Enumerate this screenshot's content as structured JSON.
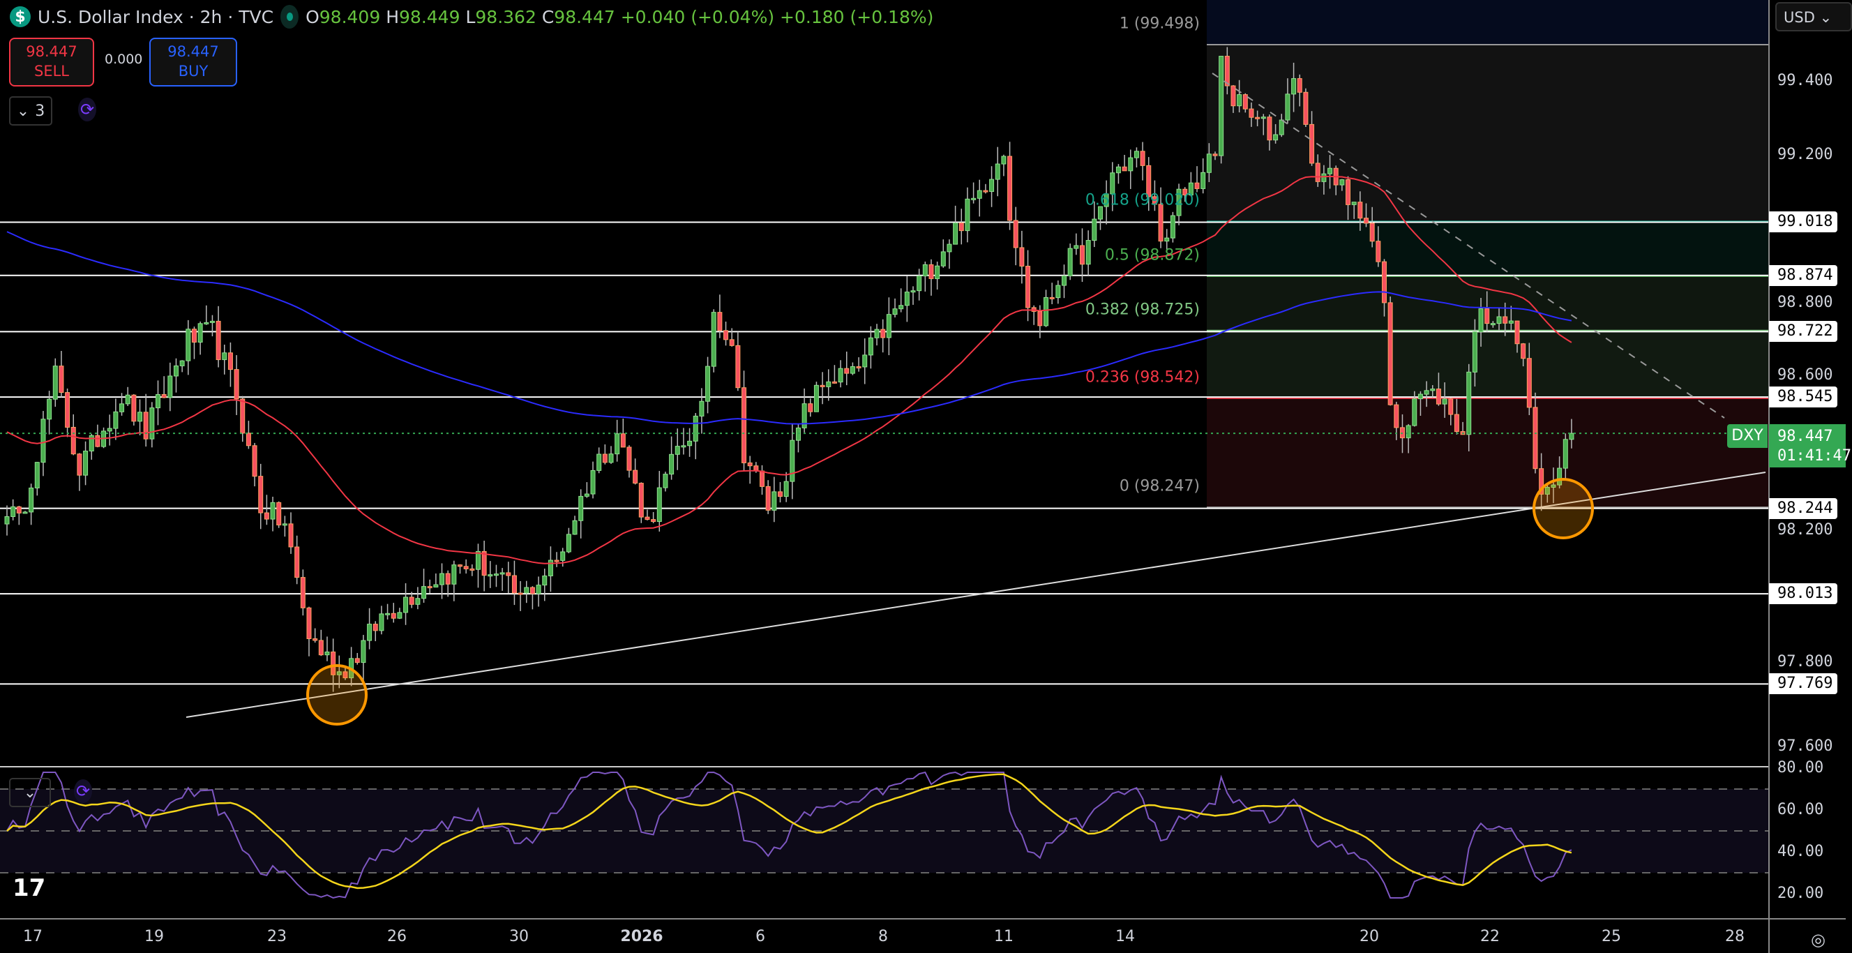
{
  "header": {
    "symbol_icon": "$",
    "title": "U.S. Dollar Index · 2h · TVC",
    "open_label": "O",
    "open": "98.409",
    "high_label": "H",
    "high": "98.449",
    "low_label": "L",
    "low": "98.362",
    "close_label": "C",
    "close": "98.447",
    "change": "+0.040 (+0.04%)",
    "change2": "+0.180 (+0.18%)"
  },
  "trade": {
    "sell_price": "98.447",
    "sell_label": "SELL",
    "spread": "0.000",
    "buy_price": "98.447",
    "buy_label": "BUY"
  },
  "legend": {
    "collapse_count": "3",
    "collapse_icon": "chevron-down-icon",
    "sync_icon": "sync-icon"
  },
  "price_axis": {
    "currency": "USD",
    "ticks": [
      "99.400",
      "99.200",
      "98.800",
      "98.600",
      "98.200",
      "97.800",
      "97.600"
    ],
    "tick_values": [
      99.4,
      99.2,
      98.8,
      98.6,
      98.2,
      97.8,
      97.6
    ],
    "levels": [
      "99.018",
      "98.874",
      "98.722",
      "98.545",
      "98.244",
      "98.013",
      "97.769"
    ],
    "current_price": "98.447",
    "countdown": "01:41:47",
    "symbol_tag": "DXY"
  },
  "fib": [
    {
      "label": "1 (99.498)",
      "value": 99.498,
      "color": "#9a9a9a"
    },
    {
      "label": "0.618 (99.020)",
      "value": 99.02,
      "color": "#15a38a"
    },
    {
      "label": "0.5 (98.872)",
      "value": 98.872,
      "color": "#4caf50"
    },
    {
      "label": "0.382 (98.725)",
      "value": 98.725,
      "color": "#81c784"
    },
    {
      "label": "0.236 (98.542)",
      "value": 98.542,
      "color": "#f23645"
    },
    {
      "label": "0 (98.247)",
      "value": 98.247,
      "color": "#9a9a9a"
    }
  ],
  "rsi_axis": {
    "ticks": [
      "80.00",
      "60.00",
      "40.00",
      "20.00"
    ],
    "values": [
      80,
      60,
      40,
      20
    ]
  },
  "time_axis": [
    "17",
    "19",
    "23",
    "26",
    "30",
    "2026",
    "6",
    "8",
    "11",
    "14",
    "20",
    "22",
    "25",
    "28"
  ],
  "colors": {
    "up": "#4caf50",
    "down": "#f7525f",
    "ma_fast": "#f23645",
    "ma_slow": "#2b2bff",
    "rsi": "#7e57c2",
    "rsi_ma": "#f5d61b"
  },
  "chart_data": {
    "type": "candlestick",
    "bars": 260,
    "price_waypoints": [
      [
        0,
        98.25
      ],
      [
        2,
        98.2
      ],
      [
        8,
        98.6
      ],
      [
        12,
        98.35
      ],
      [
        19,
        98.55
      ],
      [
        23,
        98.45
      ],
      [
        30,
        98.7
      ],
      [
        34,
        98.72
      ],
      [
        38,
        98.55
      ],
      [
        42,
        98.25
      ],
      [
        46,
        98.2
      ],
      [
        50,
        97.9
      ],
      [
        55,
        97.8
      ],
      [
        58,
        97.85
      ],
      [
        62,
        97.95
      ],
      [
        70,
        98.05
      ],
      [
        78,
        98.1
      ],
      [
        85,
        98.0
      ],
      [
        91,
        98.1
      ],
      [
        97,
        98.35
      ],
      [
        101,
        98.45
      ],
      [
        106,
        98.2
      ],
      [
        111,
        98.4
      ],
      [
        115,
        98.5
      ],
      [
        117,
        98.78
      ],
      [
        120,
        98.7
      ],
      [
        122,
        98.4
      ],
      [
        126,
        98.25
      ],
      [
        128,
        98.3
      ],
      [
        132,
        98.5
      ],
      [
        136,
        98.6
      ],
      [
        140,
        98.6
      ],
      [
        146,
        98.75
      ],
      [
        153,
        98.9
      ],
      [
        161,
        99.1
      ],
      [
        165,
        99.22
      ],
      [
        166,
        99.05
      ],
      [
        169,
        98.8
      ],
      [
        171,
        98.75
      ],
      [
        175,
        98.9
      ],
      [
        179,
        98.95
      ],
      [
        183,
        99.15
      ],
      [
        187,
        99.2
      ],
      [
        189,
        99.1
      ],
      [
        192,
        98.95
      ],
      [
        194,
        99.08
      ],
      [
        198,
        99.15
      ],
      [
        200,
        99.2
      ],
      [
        201,
        99.45
      ],
      [
        203,
        99.35
      ],
      [
        206,
        99.3
      ],
      [
        210,
        99.25
      ],
      [
        212,
        99.38
      ],
      [
        214,
        99.4
      ],
      [
        216,
        99.15
      ],
      [
        220,
        99.15
      ],
      [
        222,
        99.05
      ],
      [
        225,
        99.05
      ],
      [
        228,
        98.8
      ],
      [
        229,
        98.5
      ],
      [
        231,
        98.45
      ],
      [
        233,
        98.55
      ],
      [
        237,
        98.55
      ],
      [
        241,
        98.45
      ],
      [
        243,
        98.75
      ],
      [
        247,
        98.78
      ],
      [
        250,
        98.7
      ],
      [
        252,
        98.55
      ],
      [
        253,
        98.32
      ],
      [
        255,
        98.28
      ],
      [
        257,
        98.35
      ],
      [
        259,
        98.447
      ]
    ],
    "ma_fast_seed": 98.46,
    "ma_slow_seed": 99.0
  }
}
